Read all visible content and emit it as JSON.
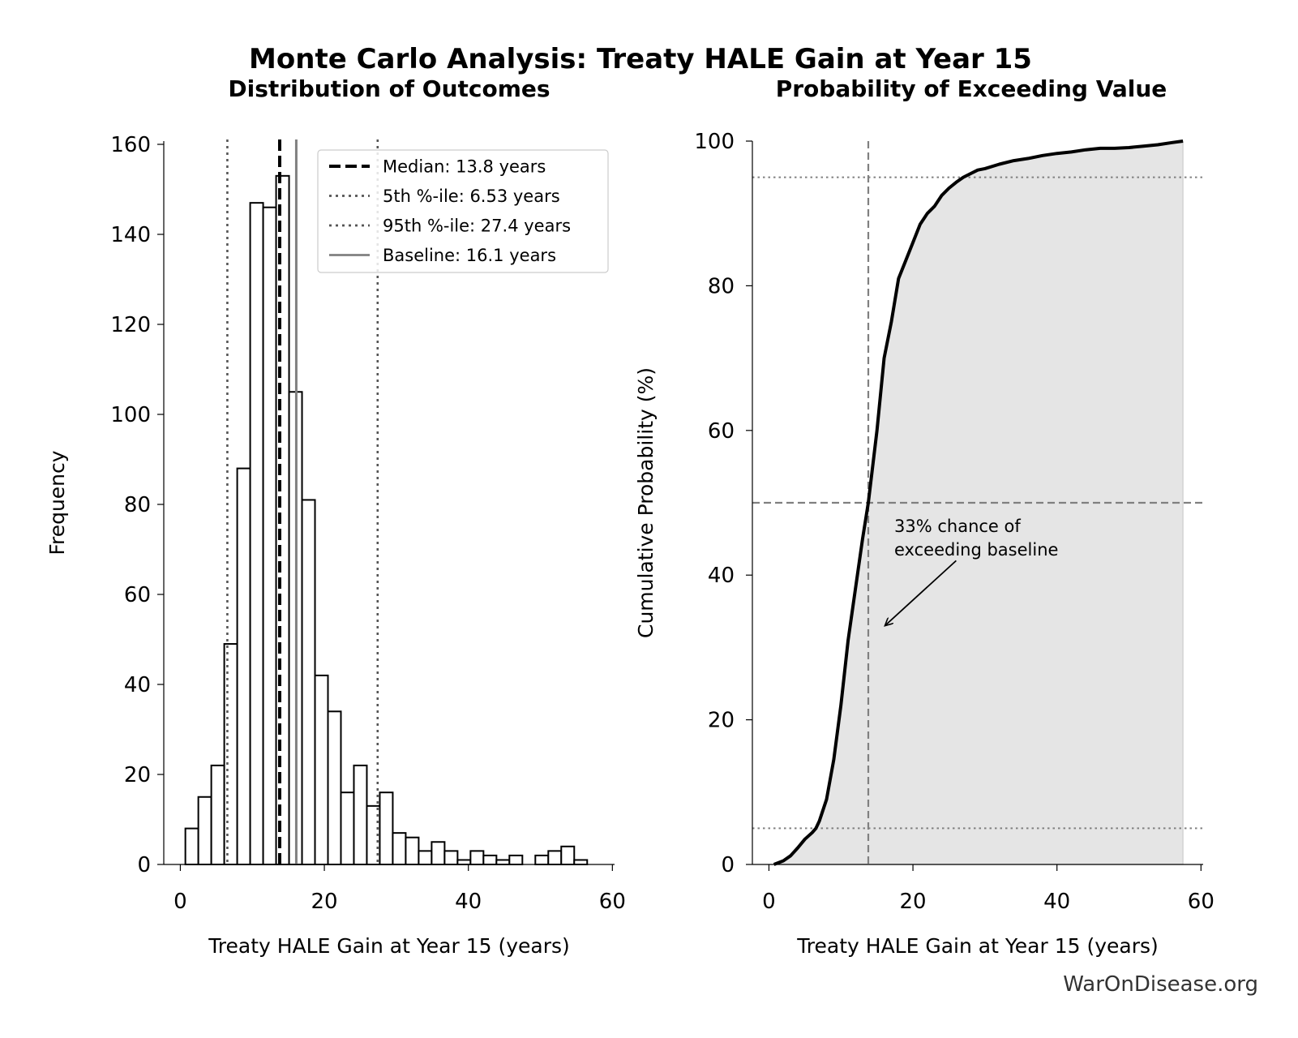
{
  "figure": {
    "suptitle": "Monte Carlo Analysis: Treaty HALE Gain at Year 15",
    "footer": "WarOnDisease.org"
  },
  "chart_data": [
    {
      "type": "bar",
      "subtype": "histogram",
      "title": "Distribution of Outcomes",
      "xlabel": "Treaty HALE Gain at Year 15 (years)",
      "ylabel": "Frequency",
      "xlim": [
        -2.3,
        60.3
      ],
      "ylim": [
        0,
        160
      ],
      "xticks": [
        0,
        20,
        40,
        60
      ],
      "yticks": [
        0,
        20,
        40,
        60,
        80,
        100,
        120,
        140,
        160
      ],
      "bin_start": 0.7,
      "bin_width": 1.8,
      "counts": [
        8,
        15,
        22,
        49,
        88,
        147,
        146,
        153,
        105,
        81,
        42,
        34,
        16,
        22,
        13,
        16,
        7,
        6,
        3,
        5,
        3,
        1,
        3,
        2,
        1,
        2,
        0,
        2,
        3,
        4,
        1
      ],
      "grid": false,
      "legend_position": "upper-right",
      "reference_lines": [
        {
          "label": "Median: 13.8 years",
          "x": 13.8,
          "style": "dashed",
          "color": "#000000"
        },
        {
          "label": "5th %-ile: 6.53 years",
          "x": 6.53,
          "style": "dotted",
          "color": "#555555"
        },
        {
          "label": "95th %-ile: 27.4 years",
          "x": 27.4,
          "style": "dotted",
          "color": "#555555"
        },
        {
          "label": "Baseline: 16.1 years",
          "x": 16.1,
          "style": "solid",
          "color": "#808080"
        }
      ]
    },
    {
      "type": "line",
      "subtype": "cumulative-distribution",
      "title": "Probability of Exceeding Value",
      "xlabel": "Treaty HALE Gain at Year 15 (years)",
      "ylabel": "Cumulative Probability (%)",
      "xlim": [
        -2.3,
        60.3
      ],
      "ylim": [
        0,
        100
      ],
      "xticks": [
        0,
        20,
        40,
        60
      ],
      "yticks": [
        0,
        20,
        40,
        60,
        80,
        100
      ],
      "grid": false,
      "fill_under": true,
      "x": [
        0.7,
        2,
        3,
        4,
        5,
        6,
        6.53,
        7,
        8,
        9,
        10,
        11,
        12,
        13,
        13.8,
        15,
        16,
        17,
        18,
        19,
        20,
        21,
        22,
        23,
        24,
        25,
        26,
        27,
        28,
        29,
        30,
        32,
        34,
        36,
        38,
        40,
        42,
        44,
        46,
        48,
        50,
        52,
        54,
        56,
        57.5
      ],
      "y": [
        0,
        0.5,
        1.2,
        2.3,
        3.5,
        4.4,
        5,
        6,
        9,
        14.5,
        22,
        31,
        38,
        45,
        50,
        60,
        70,
        75,
        81,
        83.5,
        86,
        88.5,
        90,
        91,
        92.5,
        93.5,
        94.3,
        95,
        95.5,
        96,
        96.2,
        96.8,
        97.3,
        97.6,
        98,
        98.3,
        98.5,
        98.8,
        99,
        99,
        99.1,
        99.3,
        99.5,
        99.8,
        100
      ],
      "reference_lines": [
        {
          "orientation": "vertical",
          "x": 13.8,
          "style": "dashed",
          "color": "#808080"
        },
        {
          "orientation": "horizontal",
          "y": 50,
          "style": "dashed",
          "color": "#808080"
        },
        {
          "orientation": "horizontal",
          "y": 5,
          "style": "dotted",
          "color": "#808080"
        },
        {
          "orientation": "horizontal",
          "y": 95,
          "style": "dotted",
          "color": "#808080"
        }
      ],
      "annotation": {
        "lines": [
          "33% chance of",
          "exceeding baseline"
        ],
        "arrow_target": [
          16.1,
          33
        ],
        "arrow_from": [
          26,
          42
        ]
      }
    }
  ]
}
